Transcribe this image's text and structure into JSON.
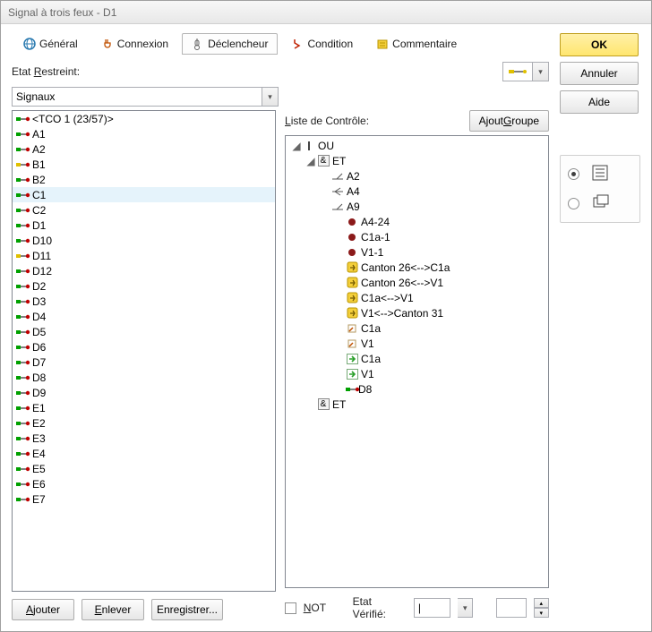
{
  "window": {
    "title": "Signal à trois feux - D1"
  },
  "tabs": [
    {
      "label": "Général",
      "icon": "globe",
      "active": false
    },
    {
      "label": "Connexion",
      "icon": "plug",
      "active": false
    },
    {
      "label": "Déclencheur",
      "icon": "trigger",
      "active": true
    },
    {
      "label": "Condition",
      "icon": "cond",
      "active": false
    },
    {
      "label": "Commentaire",
      "icon": "note",
      "active": false
    }
  ],
  "labels": {
    "etat_restreint": "Etat Restreint:",
    "etat_restreint_u": "R",
    "signals_dd": "Signaux",
    "liste_controle": "Liste de Contrôle:",
    "liste_controle_u": "L",
    "ajout_groupe": "Ajout Groupe",
    "ajout_groupe_u": "G",
    "ajouter": "Ajouter",
    "ajouter_u": "A",
    "enlever": "Enlever",
    "enlever_u": "E",
    "enregistrer": "Enregistrer...",
    "not": "NOT",
    "not_u": "N",
    "etat_verifie": "Etat Vérifié:",
    "verify_value": "|"
  },
  "buttons": {
    "ok": "OK",
    "annuler": "Annuler",
    "aide": "Aide"
  },
  "radio_selected": 0,
  "signals_header": "<TCO 1 (23/57)>",
  "signals": [
    {
      "t": "A1",
      "c1": "#00a000",
      "c2": "#c00000"
    },
    {
      "t": "A2",
      "c1": "#00a000",
      "c2": "#c00000"
    },
    {
      "t": "B1",
      "c1": "#e0c000",
      "c2": "#c00000"
    },
    {
      "t": "B2",
      "c1": "#00a000",
      "c2": "#c00000"
    },
    {
      "t": "C1",
      "c1": "#00a000",
      "c2": "#c00000",
      "sel": true
    },
    {
      "t": "C2",
      "c1": "#00a000",
      "c2": "#c00000"
    },
    {
      "t": "D1",
      "c1": "#00a000",
      "c2": "#c00000"
    },
    {
      "t": "D10",
      "c1": "#00a000",
      "c2": "#c00000"
    },
    {
      "t": "D11",
      "c1": "#e0c000",
      "c2": "#c00000"
    },
    {
      "t": "D12",
      "c1": "#00a000",
      "c2": "#c00000"
    },
    {
      "t": "D2",
      "c1": "#00a000",
      "c2": "#c00000"
    },
    {
      "t": "D3",
      "c1": "#00a000",
      "c2": "#c00000"
    },
    {
      "t": "D4",
      "c1": "#00a000",
      "c2": "#c00000"
    },
    {
      "t": "D5",
      "c1": "#00a000",
      "c2": "#c00000"
    },
    {
      "t": "D6",
      "c1": "#00a000",
      "c2": "#c00000"
    },
    {
      "t": "D7",
      "c1": "#00a000",
      "c2": "#c00000"
    },
    {
      "t": "D8",
      "c1": "#00a000",
      "c2": "#c00000"
    },
    {
      "t": "D9",
      "c1": "#00a000",
      "c2": "#c00000"
    },
    {
      "t": "E1",
      "c1": "#00a000",
      "c2": "#c00000"
    },
    {
      "t": "E2",
      "c1": "#00a000",
      "c2": "#c00000"
    },
    {
      "t": "E3",
      "c1": "#00a000",
      "c2": "#c00000"
    },
    {
      "t": "E4",
      "c1": "#00a000",
      "c2": "#c00000"
    },
    {
      "t": "E5",
      "c1": "#00a000",
      "c2": "#c00000"
    },
    {
      "t": "E6",
      "c1": "#00a000",
      "c2": "#c00000"
    },
    {
      "t": "E7",
      "c1": "#00a000",
      "c2": "#c00000"
    }
  ],
  "tree": [
    {
      "indent": 0,
      "toggle": "open",
      "icon": "bar",
      "t": "OU"
    },
    {
      "indent": 1,
      "toggle": "open",
      "icon": "amp",
      "t": "ET"
    },
    {
      "indent": 2,
      "toggle": "",
      "icon": "sw",
      "t": "A2"
    },
    {
      "indent": 2,
      "toggle": "",
      "icon": "sw2",
      "t": "A4"
    },
    {
      "indent": 2,
      "toggle": "",
      "icon": "sw",
      "t": "A9"
    },
    {
      "indent": 3,
      "toggle": "",
      "icon": "dotr",
      "t": "A4-24"
    },
    {
      "indent": 3,
      "toggle": "",
      "icon": "dotr",
      "t": "C1a-1"
    },
    {
      "indent": 3,
      "toggle": "",
      "icon": "dotr",
      "t": "V1-1"
    },
    {
      "indent": 3,
      "toggle": "",
      "icon": "yel",
      "t": "Canton 26<-->C1a"
    },
    {
      "indent": 3,
      "toggle": "",
      "icon": "yel",
      "t": "Canton 26<-->V1"
    },
    {
      "indent": 3,
      "toggle": "",
      "icon": "yel",
      "t": "C1a<-->V1"
    },
    {
      "indent": 3,
      "toggle": "",
      "icon": "yel",
      "t": "V1<-->Canton 31"
    },
    {
      "indent": 3,
      "toggle": "",
      "icon": "flag",
      "t": "C1a"
    },
    {
      "indent": 3,
      "toggle": "",
      "icon": "flag",
      "t": "V1"
    },
    {
      "indent": 3,
      "toggle": "",
      "icon": "arrg",
      "t": "C1a"
    },
    {
      "indent": 3,
      "toggle": "",
      "icon": "arrg",
      "t": "V1"
    },
    {
      "indent": 3,
      "toggle": "",
      "icon": "sig",
      "t": "D8"
    },
    {
      "indent": 1,
      "toggle": "",
      "icon": "amp",
      "t": "ET"
    }
  ],
  "colors": {
    "yellow_icon_bg": "#f4cf3a",
    "yellow_icon_border": "#b89400",
    "green_arrow": "#2aa02a",
    "red_dot": "#8b1a1a"
  }
}
